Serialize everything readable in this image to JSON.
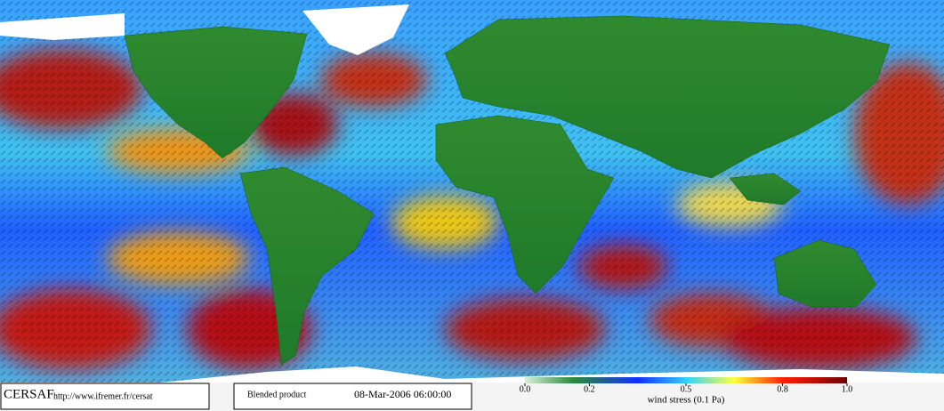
{
  "footer": {
    "logo": "CERSAF",
    "url": "http://www.ifremer.fr/cersat",
    "product": "Blended product",
    "date": "08-Mar-2006 06:00:00"
  },
  "colorbar": {
    "label": "wind stress (0.1 Pa)",
    "lim": [
      0,
      1
    ],
    "ticks": [
      {
        "value": 0,
        "label": "0.0"
      },
      0.2,
      0.5,
      0.8,
      {
        "value": 1,
        "label": "1.0"
      }
    ]
  }
}
